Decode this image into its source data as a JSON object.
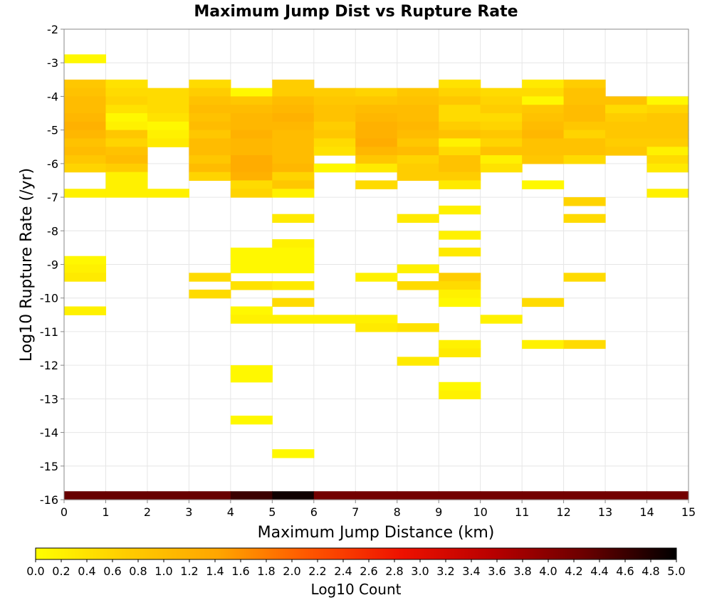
{
  "chart_data": {
    "type": "heatmap",
    "title": "Maximum Jump Dist vs Rupture Rate",
    "xlabel": "Maximum Jump Distance (km)",
    "ylabel": "Log10 Rupture Rate (/yr)",
    "xlim": [
      0,
      15
    ],
    "ylim": [
      -16,
      -2
    ],
    "x_ticks": [
      "0",
      "1",
      "2",
      "3",
      "4",
      "5",
      "6",
      "7",
      "8",
      "9",
      "10",
      "11",
      "12",
      "13",
      "14",
      "15"
    ],
    "y_ticks": [
      "-16",
      "-15",
      "-14",
      "-13",
      "-12",
      "-11",
      "-10",
      "-9",
      "-8",
      "-7",
      "-6",
      "-5",
      "-4",
      "-3",
      "-2"
    ],
    "cell_width_km": 1,
    "cell_height_log": 0.25,
    "grid": true,
    "colorbar": {
      "label": "Log10 Count",
      "range": [
        0,
        5
      ],
      "ticks": [
        "0.0",
        "0.2",
        "0.4",
        "0.6",
        "0.8",
        "1.0",
        "1.2",
        "1.4",
        "1.6",
        "1.8",
        "2.0",
        "2.2",
        "2.4",
        "2.6",
        "2.8",
        "3.0",
        "3.2",
        "3.4",
        "3.6",
        "3.8",
        "4.0",
        "4.2",
        "4.4",
        "4.6",
        "4.8",
        "5.0"
      ],
      "colors": [
        "#ffff00",
        "#ffcc00",
        "#ffa500",
        "#ff5500",
        "#ee1100",
        "#b80000",
        "#6a0000",
        "#000000"
      ]
    },
    "columns": [
      {
        "x": 0,
        "cells": [
          [
            -3.0,
            0.1
          ],
          [
            -3.75,
            0.8
          ],
          [
            -4.0,
            0.9
          ],
          [
            -4.25,
            1.0
          ],
          [
            -4.5,
            1.0
          ],
          [
            -4.75,
            1.1
          ],
          [
            -5.0,
            1.2
          ],
          [
            -5.25,
            1.1
          ],
          [
            -5.5,
            0.9
          ],
          [
            -5.75,
            1.0
          ],
          [
            -6.0,
            0.8
          ],
          [
            -6.25,
            0.6
          ],
          [
            -7.0,
            0.2
          ],
          [
            -9.0,
            0.1
          ],
          [
            -9.25,
            0.2
          ],
          [
            -9.5,
            0.3
          ],
          [
            -10.5,
            0.2
          ],
          [
            -16.0,
            4.3
          ]
        ]
      },
      {
        "x": 1,
        "cells": [
          [
            -3.75,
            0.4
          ],
          [
            -4.0,
            0.5
          ],
          [
            -4.25,
            0.6
          ],
          [
            -4.5,
            0.4
          ],
          [
            -4.75,
            0.1
          ],
          [
            -5.0,
            0.2
          ],
          [
            -5.25,
            0.8
          ],
          [
            -5.5,
            0.6
          ],
          [
            -5.75,
            0.9
          ],
          [
            -6.0,
            1.0
          ],
          [
            -6.25,
            0.7
          ],
          [
            -6.5,
            0.2
          ],
          [
            -6.75,
            0.2
          ],
          [
            -7.0,
            0.2
          ],
          [
            -16.0,
            4.3
          ]
        ]
      },
      {
        "x": 2,
        "cells": [
          [
            -4.0,
            0.5
          ],
          [
            -4.25,
            0.5
          ],
          [
            -4.5,
            0.5
          ],
          [
            -4.75,
            0.4
          ],
          [
            -5.0,
            0.1
          ],
          [
            -5.25,
            0.2
          ],
          [
            -5.5,
            0.3
          ],
          [
            -7.0,
            0.2
          ],
          [
            -16.0,
            4.3
          ]
        ]
      },
      {
        "x": 3,
        "cells": [
          [
            -3.75,
            0.5
          ],
          [
            -4.0,
            0.7
          ],
          [
            -4.25,
            0.9
          ],
          [
            -4.5,
            1.0
          ],
          [
            -4.75,
            0.9
          ],
          [
            -5.0,
            1.0
          ],
          [
            -5.25,
            0.8
          ],
          [
            -5.5,
            1.0
          ],
          [
            -5.75,
            1.0
          ],
          [
            -6.0,
            0.8
          ],
          [
            -6.25,
            1.0
          ],
          [
            -6.5,
            0.6
          ],
          [
            -9.5,
            0.5
          ],
          [
            -10.0,
            0.5
          ],
          [
            -16.0,
            4.3
          ]
        ]
      },
      {
        "x": 4,
        "cells": [
          [
            -4.0,
            0.1
          ],
          [
            -4.25,
            0.8
          ],
          [
            -4.5,
            1.0
          ],
          [
            -4.75,
            1.1
          ],
          [
            -5.0,
            1.1
          ],
          [
            -5.25,
            1.2
          ],
          [
            -5.5,
            1.1
          ],
          [
            -5.75,
            1.1
          ],
          [
            -6.0,
            1.3
          ],
          [
            -6.25,
            1.3
          ],
          [
            -6.5,
            1.2
          ],
          [
            -6.75,
            0.5
          ],
          [
            -7.0,
            0.6
          ],
          [
            -8.75,
            0.1
          ],
          [
            -9.0,
            0.1
          ],
          [
            -9.25,
            0.1
          ],
          [
            -9.75,
            0.4
          ],
          [
            -10.5,
            0.1
          ],
          [
            -10.75,
            0.2
          ],
          [
            -12.25,
            0.1
          ],
          [
            -12.5,
            0.1
          ],
          [
            -13.75,
            0.1
          ],
          [
            -16.0,
            4.6
          ]
        ]
      },
      {
        "x": 5,
        "cells": [
          [
            -3.75,
            0.7
          ],
          [
            -4.0,
            0.7
          ],
          [
            -4.25,
            1.0
          ],
          [
            -4.5,
            1.1
          ],
          [
            -4.75,
            1.2
          ],
          [
            -5.0,
            1.1
          ],
          [
            -5.25,
            1.0
          ],
          [
            -5.5,
            1.0
          ],
          [
            -5.75,
            1.0
          ],
          [
            -6.0,
            1.0
          ],
          [
            -6.25,
            1.1
          ],
          [
            -6.5,
            0.6
          ],
          [
            -6.75,
            0.8
          ],
          [
            -7.0,
            0.2
          ],
          [
            -7.75,
            0.3
          ],
          [
            -8.5,
            0.2
          ],
          [
            -8.75,
            0.1
          ],
          [
            -9.0,
            0.1
          ],
          [
            -9.25,
            0.1
          ],
          [
            -9.75,
            0.3
          ],
          [
            -10.25,
            0.5
          ],
          [
            -10.75,
            0.2
          ],
          [
            -14.75,
            0.1
          ],
          [
            -16.0,
            4.9
          ]
        ]
      },
      {
        "x": 6,
        "cells": [
          [
            -4.0,
            0.7
          ],
          [
            -4.25,
            0.8
          ],
          [
            -4.5,
            0.9
          ],
          [
            -4.75,
            0.9
          ],
          [
            -5.0,
            0.7
          ],
          [
            -5.25,
            0.8
          ],
          [
            -5.5,
            0.5
          ],
          [
            -5.75,
            0.4
          ],
          [
            -6.25,
            0.1
          ],
          [
            -10.75,
            0.2
          ],
          [
            -16.0,
            4.2
          ]
        ]
      },
      {
        "x": 7,
        "cells": [
          [
            -4.0,
            0.6
          ],
          [
            -4.25,
            0.8
          ],
          [
            -4.5,
            1.0
          ],
          [
            -4.75,
            1.1
          ],
          [
            -5.0,
            1.2
          ],
          [
            -5.25,
            1.2
          ],
          [
            -5.5,
            1.3
          ],
          [
            -5.75,
            1.1
          ],
          [
            -6.0,
            0.8
          ],
          [
            -6.25,
            0.3
          ],
          [
            -6.75,
            0.5
          ],
          [
            -9.5,
            0.2
          ],
          [
            -10.75,
            0.2
          ],
          [
            -11.0,
            0.3
          ],
          [
            -16.0,
            4.2
          ]
        ]
      },
      {
        "x": 8,
        "cells": [
          [
            -4.0,
            0.8
          ],
          [
            -4.25,
            0.9
          ],
          [
            -4.5,
            1.0
          ],
          [
            -4.75,
            1.0
          ],
          [
            -5.0,
            1.1
          ],
          [
            -5.25,
            1.0
          ],
          [
            -5.5,
            0.8
          ],
          [
            -5.75,
            1.0
          ],
          [
            -6.0,
            0.6
          ],
          [
            -6.25,
            0.7
          ],
          [
            -6.5,
            0.7
          ],
          [
            -7.75,
            0.3
          ],
          [
            -9.25,
            0.2
          ],
          [
            -9.75,
            0.5
          ],
          [
            -11.0,
            0.4
          ],
          [
            -12.0,
            0.3
          ],
          [
            -16.0,
            4.2
          ]
        ]
      },
      {
        "x": 9,
        "cells": [
          [
            -3.75,
            0.4
          ],
          [
            -4.0,
            0.6
          ],
          [
            -4.25,
            0.8
          ],
          [
            -4.5,
            0.5
          ],
          [
            -4.75,
            0.5
          ],
          [
            -5.0,
            0.7
          ],
          [
            -5.25,
            0.9
          ],
          [
            -5.5,
            0.2
          ],
          [
            -5.75,
            0.5
          ],
          [
            -6.0,
            0.9
          ],
          [
            -6.25,
            0.9
          ],
          [
            -6.5,
            0.7
          ],
          [
            -6.75,
            0.3
          ],
          [
            -7.5,
            0.2
          ],
          [
            -8.25,
            0.2
          ],
          [
            -8.75,
            0.3
          ],
          [
            -9.5,
            0.7
          ],
          [
            -9.75,
            0.5
          ],
          [
            -10.0,
            0.2
          ],
          [
            -10.25,
            0.1
          ],
          [
            -11.5,
            0.2
          ],
          [
            -11.75,
            0.3
          ],
          [
            -12.75,
            0.1
          ],
          [
            -13.0,
            0.2
          ],
          [
            -16.0,
            4.2
          ]
        ]
      },
      {
        "x": 10,
        "cells": [
          [
            -4.0,
            0.5
          ],
          [
            -4.25,
            0.6
          ],
          [
            -4.5,
            0.7
          ],
          [
            -4.75,
            0.5
          ],
          [
            -5.0,
            0.6
          ],
          [
            -5.25,
            0.8
          ],
          [
            -5.5,
            0.6
          ],
          [
            -5.75,
            0.9
          ],
          [
            -6.0,
            0.2
          ],
          [
            -6.25,
            0.4
          ],
          [
            -10.75,
            0.2
          ],
          [
            -16.0,
            4.2
          ]
        ]
      },
      {
        "x": 11,
        "cells": [
          [
            -3.75,
            0.3
          ],
          [
            -4.0,
            0.5
          ],
          [
            -4.25,
            0.1
          ],
          [
            -4.5,
            0.8
          ],
          [
            -4.75,
            0.9
          ],
          [
            -5.0,
            1.0
          ],
          [
            -5.25,
            1.1
          ],
          [
            -5.5,
            0.9
          ],
          [
            -5.75,
            0.9
          ],
          [
            -6.0,
            0.8
          ],
          [
            -6.75,
            0.1
          ],
          [
            -10.25,
            0.5
          ],
          [
            -11.5,
            0.2
          ],
          [
            -16.0,
            4.2
          ]
        ]
      },
      {
        "x": 12,
        "cells": [
          [
            -3.75,
            0.7
          ],
          [
            -4.0,
            0.9
          ],
          [
            -4.25,
            0.9
          ],
          [
            -4.5,
            1.0
          ],
          [
            -4.75,
            1.0
          ],
          [
            -5.0,
            0.8
          ],
          [
            -5.25,
            0.6
          ],
          [
            -5.5,
            0.9
          ],
          [
            -5.75,
            0.9
          ],
          [
            -6.0,
            0.5
          ],
          [
            -7.25,
            0.6
          ],
          [
            -7.75,
            0.5
          ],
          [
            -9.5,
            0.5
          ],
          [
            -11.5,
            0.5
          ],
          [
            -16.0,
            4.2
          ]
        ]
      },
      {
        "x": 13,
        "cells": [
          [
            -4.25,
            0.9
          ],
          [
            -4.5,
            0.5
          ],
          [
            -4.75,
            0.7
          ],
          [
            -5.0,
            0.8
          ],
          [
            -5.25,
            0.8
          ],
          [
            -5.5,
            0.7
          ],
          [
            -5.75,
            0.8
          ],
          [
            -16.0,
            4.2
          ]
        ]
      },
      {
        "x": 14,
        "cells": [
          [
            -4.25,
            0.1
          ],
          [
            -4.5,
            0.6
          ],
          [
            -4.75,
            0.8
          ],
          [
            -5.0,
            0.8
          ],
          [
            -5.25,
            0.8
          ],
          [
            -5.5,
            0.7
          ],
          [
            -5.75,
            0.2
          ],
          [
            -6.0,
            0.5
          ],
          [
            -6.25,
            0.3
          ],
          [
            -7.0,
            0.2
          ],
          [
            -16.0,
            4.2
          ]
        ]
      }
    ]
  }
}
